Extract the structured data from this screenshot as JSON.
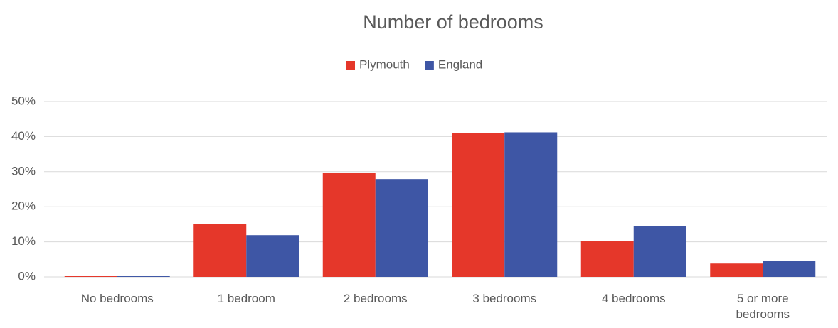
{
  "chart_data": {
    "type": "bar",
    "title": "Number of bedrooms",
    "categories": [
      "No bedrooms",
      "1 bedroom",
      "2 bedrooms",
      "3 bedrooms",
      "4 bedrooms",
      "5 or more bedrooms"
    ],
    "series": [
      {
        "name": "Plymouth",
        "color": "#e5372a",
        "values": [
          0.2,
          15.1,
          29.7,
          41.0,
          10.3,
          3.8
        ]
      },
      {
        "name": "England",
        "color": "#3e56a5",
        "values": [
          0.2,
          11.9,
          27.9,
          41.2,
          14.4,
          4.6
        ]
      }
    ],
    "ylim": [
      0,
      50
    ],
    "yticks": [
      {
        "value": 0,
        "label": "0%"
      },
      {
        "value": 10,
        "label": "10%"
      },
      {
        "value": 20,
        "label": "20%"
      },
      {
        "value": 30,
        "label": "30%"
      },
      {
        "value": 40,
        "label": "40%"
      },
      {
        "value": 50,
        "label": "50%"
      }
    ],
    "grid": true,
    "legend": "top"
  }
}
